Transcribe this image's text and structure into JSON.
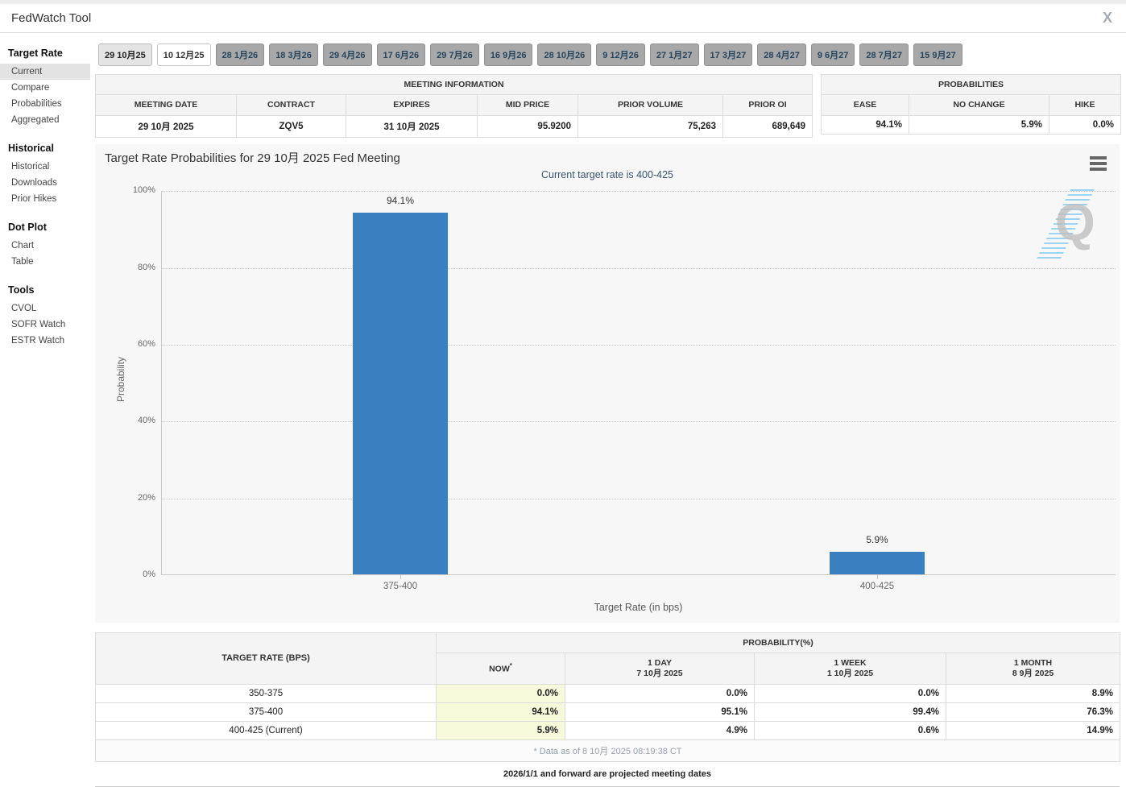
{
  "header": {
    "title": "FedWatch Tool",
    "x_share_glyph": "X"
  },
  "sidebar": {
    "sections": [
      {
        "title": "Target Rate",
        "items": [
          {
            "label": "Current",
            "active": true
          },
          {
            "label": "Compare",
            "active": false
          },
          {
            "label": "Probabilities",
            "active": false
          },
          {
            "label": "Aggregated",
            "active": false
          }
        ]
      },
      {
        "title": "Historical",
        "items": [
          {
            "label": "Historical",
            "active": false
          },
          {
            "label": "Downloads",
            "active": false
          },
          {
            "label": "Prior Hikes",
            "active": false
          }
        ]
      },
      {
        "title": "Dot Plot",
        "items": [
          {
            "label": "Chart",
            "active": false
          },
          {
            "label": "Table",
            "active": false
          }
        ]
      },
      {
        "title": "Tools",
        "items": [
          {
            "label": "CVOL",
            "active": false
          },
          {
            "label": "SOFR Watch",
            "active": false
          },
          {
            "label": "ESTR Watch",
            "active": false
          }
        ]
      }
    ]
  },
  "tabs": [
    {
      "label": "29 10月25",
      "state": "past"
    },
    {
      "label": "10 12月25",
      "state": "selected"
    },
    {
      "label": "28 1月26",
      "state": "future"
    },
    {
      "label": "18 3月26",
      "state": "future"
    },
    {
      "label": "29 4月26",
      "state": "future"
    },
    {
      "label": "17 6月26",
      "state": "future"
    },
    {
      "label": "29 7月26",
      "state": "future"
    },
    {
      "label": "16 9月26",
      "state": "future"
    },
    {
      "label": "28 10月26",
      "state": "future"
    },
    {
      "label": "9 12月26",
      "state": "future"
    },
    {
      "label": "27 1月27",
      "state": "future"
    },
    {
      "label": "17 3月27",
      "state": "future"
    },
    {
      "label": "28 4月27",
      "state": "future"
    },
    {
      "label": "9 6月27",
      "state": "future"
    },
    {
      "label": "28 7月27",
      "state": "future"
    },
    {
      "label": "15 9月27",
      "state": "future"
    }
  ],
  "meeting_information": {
    "title": "MEETING INFORMATION",
    "columns": [
      {
        "label": "MEETING DATE",
        "align": "c"
      },
      {
        "label": "CONTRACT",
        "align": "c"
      },
      {
        "label": "EXPIRES",
        "align": "c"
      },
      {
        "label": "MID PRICE",
        "align": "r"
      },
      {
        "label": "PRIOR VOLUME",
        "align": "r"
      },
      {
        "label": "PRIOR OI",
        "align": "r"
      }
    ],
    "values": [
      "29 10月 2025",
      "ZQV5",
      "31 10月 2025",
      "95.9200",
      "75,263",
      "689,649"
    ]
  },
  "probabilities_summary": {
    "title": "PROBABILITIES",
    "columns": [
      {
        "label": "EASE",
        "align": "r"
      },
      {
        "label": "NO CHANGE",
        "align": "r"
      },
      {
        "label": "HIKE",
        "align": "r"
      }
    ],
    "values": [
      "94.1%",
      "5.9%",
      "0.0%"
    ]
  },
  "chart_data": {
    "type": "bar",
    "title": "Target Rate Probabilities for 29 10月 2025 Fed Meeting",
    "subtitle": "Current target rate is 400-425",
    "categories": [
      "375-400",
      "400-425"
    ],
    "values": [
      94.1,
      5.9
    ],
    "value_labels": [
      "94.1%",
      "5.9%"
    ],
    "xlabel": "Target Rate (in bps)",
    "ylabel": "Probability",
    "ylim": [
      0,
      100
    ],
    "yticks": [
      0,
      20,
      40,
      60,
      80,
      100
    ],
    "ytick_labels": [
      "0%",
      "20%",
      "40%",
      "60%",
      "80%",
      "100%"
    ],
    "legend": "none",
    "grid": "dotted-horizontal",
    "bar_color": "#3a80c0",
    "background_color": "#f7f7f7"
  },
  "probability_table": {
    "corner": "TARGET RATE (BPS)",
    "group": "PROBABILITY(%)",
    "columns": [
      {
        "line1": "NOW",
        "sup": "*",
        "line2": ""
      },
      {
        "line1": "1 DAY",
        "line2": "7 10月 2025"
      },
      {
        "line1": "1 WEEK",
        "line2": "1 10月 2025"
      },
      {
        "line1": "1 MONTH",
        "line2": "8 9月 2025"
      }
    ],
    "rows": [
      {
        "label": "350-375",
        "values": [
          "0.0%",
          "0.0%",
          "0.0%",
          "8.9%"
        ]
      },
      {
        "label": "375-400",
        "values": [
          "94.1%",
          "95.1%",
          "99.4%",
          "76.3%"
        ]
      },
      {
        "label": "400-425 (Current)",
        "values": [
          "5.9%",
          "4.9%",
          "0.6%",
          "14.9%"
        ]
      }
    ],
    "footnote": "* Data as of 8 10月 2025 08:19:38 CT",
    "now_highlight_color": "#f8f8da"
  },
  "footer_note": "2026/1/1 and forward are projected meeting dates",
  "watermark": {
    "glyph": "Q"
  }
}
